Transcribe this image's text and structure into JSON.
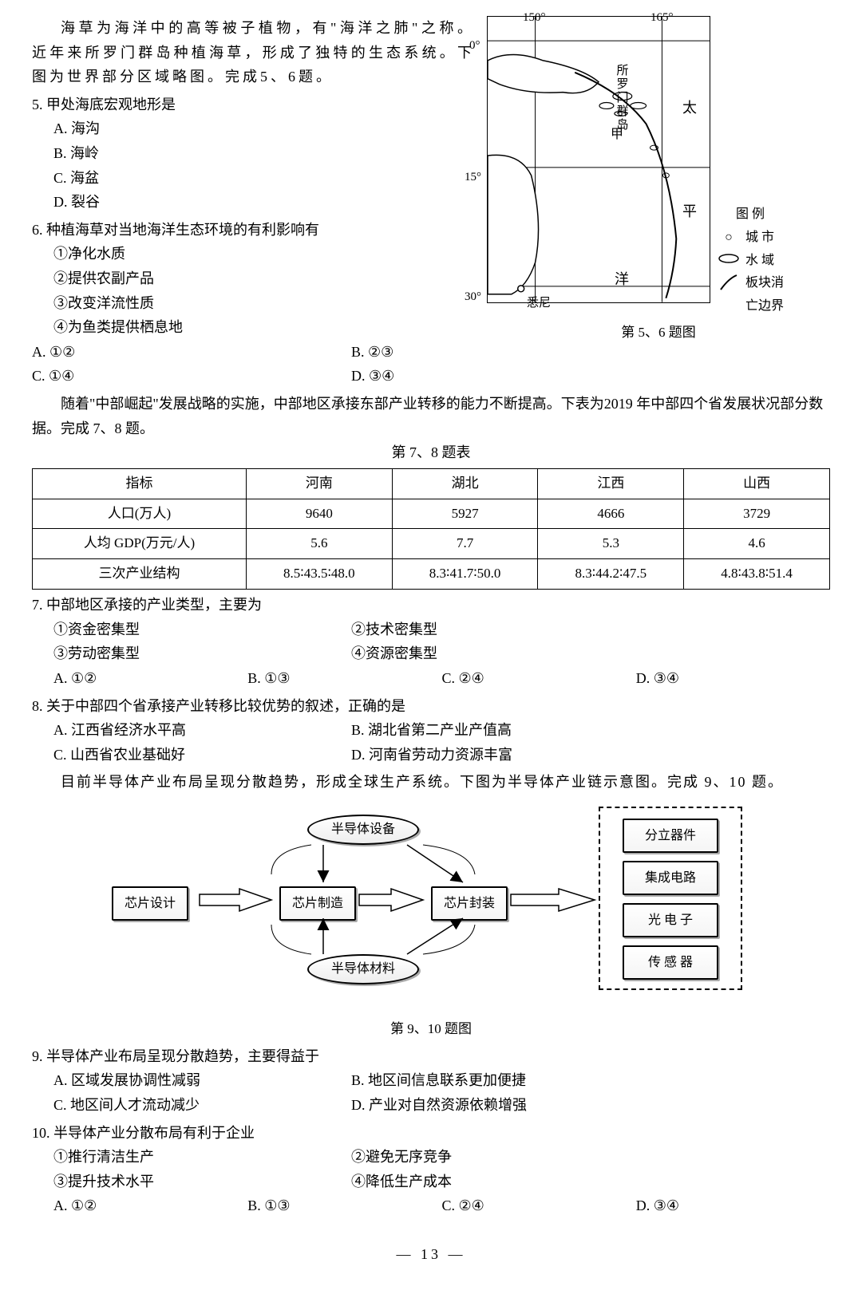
{
  "intro56": "海草为海洋中的高等被子植物，有\"海洋之肺\"之称。近年来所罗门群岛种植海草，形成了独特的生态系统。下图为世界部分区域略图。完成5、6题。",
  "q5": {
    "stem": "5. 甲处海底宏观地形是",
    "A": "A. 海沟",
    "B": "B. 海岭",
    "C": "C. 海盆",
    "D": "D. 裂谷"
  },
  "q6": {
    "stem": "6. 种植海草对当地海洋生态环境的有利影响有",
    "o1": "①净化水质",
    "o2": "②提供农副产品",
    "o3": "③改变洋流性质",
    "o4": "④为鱼类提供栖息地",
    "A": "A. ①②",
    "B": "B. ②③",
    "C": "C. ①④",
    "D": "D. ③④"
  },
  "map": {
    "lon1": "150°",
    "lon2": "165°",
    "lat0": "0°",
    "lat15": "15°",
    "lat30": "30°",
    "solomon": "所罗门群岛",
    "jia": "甲",
    "tai": "太",
    "ping": "平",
    "yang": "洋",
    "sydney": "悉尼",
    "legend_title": "图 例",
    "legend_city": "城 市",
    "legend_water": "水 域",
    "legend_plate1": "板块消",
    "legend_plate2": "亡边界",
    "caption": "第 5、6 题图"
  },
  "intro78": "随着\"中部崛起\"发展战略的实施，中部地区承接东部产业转移的能力不断提高。下表为2019 年中部四个省发展状况部分数据。完成 7、8 题。",
  "table78": {
    "title": "第 7、8 题表",
    "headers": [
      "指标",
      "河南",
      "湖北",
      "江西",
      "山西"
    ],
    "rows": [
      [
        "人口(万人)",
        "9640",
        "5927",
        "4666",
        "3729"
      ],
      [
        "人均 GDP(万元/人)",
        "5.6",
        "7.7",
        "5.3",
        "4.6"
      ],
      [
        "三次产业结构",
        "8.5∶43.5∶48.0",
        "8.3∶41.7∶50.0",
        "8.3∶44.2∶47.5",
        "4.8∶43.8∶51.4"
      ]
    ]
  },
  "q7": {
    "stem": "7. 中部地区承接的产业类型，主要为",
    "o1": "①资金密集型",
    "o2": "②技术密集型",
    "o3": "③劳动密集型",
    "o4": "④资源密集型",
    "A": "A. ①②",
    "B": "B. ①③",
    "C": "C. ②④",
    "D": "D. ③④"
  },
  "q8": {
    "stem": "8. 关于中部四个省承接产业转移比较优势的叙述，正确的是",
    "A": "A. 江西省经济水平高",
    "B": "B. 湖北省第二产业产值高",
    "C": "C. 山西省农业基础好",
    "D": "D. 河南省劳动力资源丰富"
  },
  "intro910": "目前半导体产业布局呈现分散趋势，形成全球生产系统。下图为半导体产业链示意图。完成 9、10 题。",
  "diagram": {
    "design": "芯片设计",
    "mfg": "芯片制造",
    "pkg": "芯片封装",
    "equip": "半导体设备",
    "material": "半导体材料",
    "out1": "分立器件",
    "out2": "集成电路",
    "out3": "光 电 子",
    "out4": "传 感 器",
    "caption": "第 9、10 题图"
  },
  "q9": {
    "stem": "9. 半导体产业布局呈现分散趋势，主要得益于",
    "A": "A. 区域发展协调性减弱",
    "B": "B. 地区间信息联系更加便捷",
    "C": "C. 地区间人才流动减少",
    "D": "D. 产业对自然资源依赖增强"
  },
  "q10": {
    "stem": "10. 半导体产业分散布局有利于企业",
    "o1": "①推行清洁生产",
    "o2": "②避免无序竞争",
    "o3": "③提升技术水平",
    "o4": "④降低生产成本",
    "A": "A. ①②",
    "B": "B. ①③",
    "C": "C. ②④",
    "D": "D. ③④"
  },
  "page": "— 13 —"
}
